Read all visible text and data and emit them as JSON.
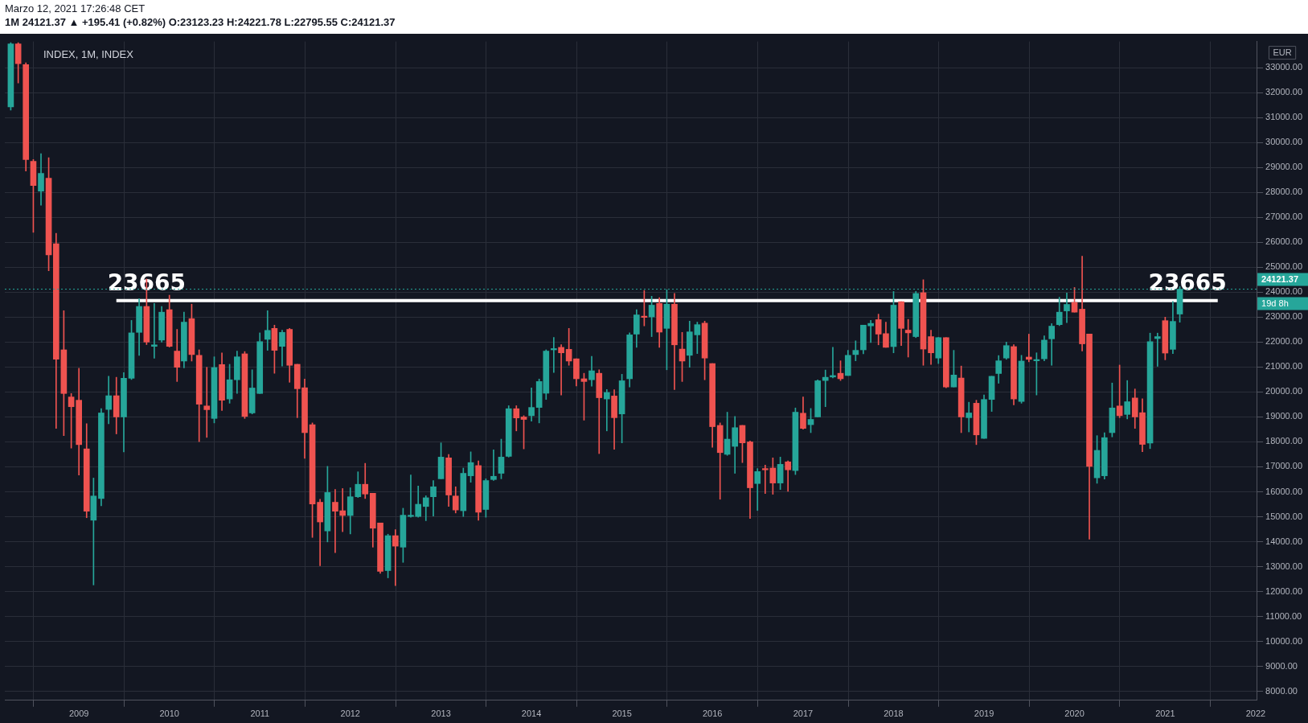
{
  "chart_data": {
    "type": "candlestick",
    "title": "INDEX, 1M, INDEX",
    "subtitle": "1M  24121.37 ▲ +195.41 (+0.82%) O:23123.23 H:24221.78 L:22795.55 C:24121.37",
    "ylabel": "EUR",
    "annotations": [
      "Marzo 12, 2021 17:26:48 CET",
      {
        "text": "23665",
        "x": "2009-10",
        "y": 23665
      },
      {
        "text": "23665",
        "x": "2021-04",
        "y": 23665
      },
      "19d 8h"
    ],
    "x": [
      "2008-04",
      "2008-05",
      "2008-06",
      "2008-07",
      "2008-08",
      "2008-09",
      "2008-10",
      "2008-11",
      "2008-12",
      "2009-01",
      "2009-02",
      "2009-03",
      "2009-04",
      "2009-05",
      "2009-06",
      "2009-07",
      "2009-08",
      "2009-09",
      "2009-10",
      "2009-11",
      "2009-12",
      "2010-01",
      "2010-02",
      "2010-03",
      "2010-04",
      "2010-05",
      "2010-06",
      "2010-07",
      "2010-08",
      "2010-09",
      "2010-10",
      "2010-11",
      "2010-12",
      "2011-01",
      "2011-02",
      "2011-03",
      "2011-04",
      "2011-05",
      "2011-06",
      "2011-07",
      "2011-08",
      "2011-09",
      "2011-10",
      "2011-11",
      "2011-12",
      "2012-01",
      "2012-02",
      "2012-03",
      "2012-04",
      "2012-05",
      "2012-06",
      "2012-07",
      "2012-08",
      "2012-09",
      "2012-10",
      "2012-11",
      "2012-12",
      "2013-01",
      "2013-02",
      "2013-03",
      "2013-04",
      "2013-05",
      "2013-06",
      "2013-07",
      "2013-08",
      "2013-09",
      "2013-10",
      "2013-11",
      "2013-12",
      "2014-01",
      "2014-02",
      "2014-03",
      "2014-04",
      "2014-05",
      "2014-06",
      "2014-07",
      "2014-08",
      "2014-09",
      "2014-10",
      "2014-11",
      "2014-12",
      "2015-01",
      "2015-02",
      "2015-03",
      "2015-04",
      "2015-05",
      "2015-06",
      "2015-07",
      "2015-08",
      "2015-09",
      "2015-10",
      "2015-11",
      "2015-12",
      "2016-01",
      "2016-02",
      "2016-03",
      "2016-04",
      "2016-05",
      "2016-06",
      "2016-07",
      "2016-08",
      "2016-09",
      "2016-10",
      "2016-11",
      "2016-12",
      "2017-01",
      "2017-02",
      "2017-03",
      "2017-04",
      "2017-05",
      "2017-06",
      "2017-07",
      "2017-08",
      "2017-09",
      "2017-10",
      "2017-11",
      "2017-12",
      "2018-01",
      "2018-02",
      "2018-03",
      "2018-04",
      "2018-05",
      "2018-06",
      "2018-07",
      "2018-08",
      "2018-09",
      "2018-10",
      "2018-11",
      "2018-12",
      "2019-01",
      "2019-02",
      "2019-03",
      "2019-04",
      "2019-05",
      "2019-06",
      "2019-07",
      "2019-08",
      "2019-09",
      "2019-10",
      "2019-11",
      "2019-12",
      "2020-01",
      "2020-02",
      "2020-03",
      "2020-04",
      "2020-05",
      "2020-06",
      "2020-07",
      "2020-08",
      "2020-09",
      "2020-10",
      "2020-11",
      "2020-12",
      "2021-01",
      "2021-02",
      "2021-03"
    ],
    "ohlc": [
      [
        31430,
        34000,
        31300,
        33950
      ],
      [
        33950,
        34000,
        32390,
        33160
      ],
      [
        33120,
        33200,
        28860,
        29320
      ],
      [
        29250,
        29320,
        26400,
        28280
      ],
      [
        28050,
        29550,
        27490,
        28760
      ],
      [
        28570,
        29390,
        24860,
        25500
      ],
      [
        25940,
        26360,
        18540,
        21310
      ],
      [
        21690,
        23260,
        18250,
        19940
      ],
      [
        19800,
        19940,
        17750,
        19410
      ],
      [
        19670,
        20950,
        16670,
        17890
      ],
      [
        17720,
        18730,
        14960,
        15220
      ],
      [
        14860,
        16550,
        12265,
        15830
      ],
      [
        15730,
        19330,
        15440,
        19160
      ],
      [
        19300,
        20630,
        18730,
        19850
      ],
      [
        19850,
        20590,
        18320,
        19000
      ],
      [
        19000,
        20780,
        17600,
        20550
      ],
      [
        20550,
        22870,
        20500,
        22370
      ],
      [
        22390,
        23740,
        21470,
        23430
      ],
      [
        23430,
        24530,
        21900,
        22000
      ],
      [
        21830,
        23550,
        21350,
        21890
      ],
      [
        22080,
        23430,
        22000,
        23200
      ],
      [
        23300,
        23880,
        21800,
        21830
      ],
      [
        21640,
        22510,
        20420,
        20990
      ],
      [
        21240,
        23200,
        20970,
        22800
      ],
      [
        22940,
        23520,
        21240,
        21500
      ],
      [
        21470,
        21690,
        18010,
        19510
      ],
      [
        19440,
        20990,
        18180,
        19290
      ],
      [
        18940,
        21410,
        18760,
        20980
      ],
      [
        21100,
        21570,
        19260,
        19670
      ],
      [
        19720,
        21110,
        19550,
        20490
      ],
      [
        20490,
        21640,
        19940,
        21410
      ],
      [
        21530,
        21620,
        18940,
        19020
      ],
      [
        19160,
        20890,
        19120,
        20160
      ],
      [
        19940,
        22370,
        19940,
        22020
      ],
      [
        22110,
        23260,
        21670,
        22470
      ],
      [
        22550,
        22680,
        20750,
        21670
      ],
      [
        21830,
        22480,
        21040,
        22390
      ],
      [
        22510,
        22550,
        20390,
        21070
      ],
      [
        21110,
        21110,
        18970,
        20130
      ],
      [
        20170,
        20520,
        17340,
        18370
      ],
      [
        18690,
        18760,
        14170,
        15510
      ],
      [
        15580,
        15700,
        13040,
        14790
      ],
      [
        14430,
        17020,
        13990,
        15970
      ],
      [
        15580,
        16090,
        13560,
        15220
      ],
      [
        15240,
        16130,
        14400,
        15050
      ],
      [
        15050,
        16160,
        14310,
        15800
      ],
      [
        15800,
        16800,
        15770,
        16300
      ],
      [
        16300,
        17140,
        15730,
        15910
      ],
      [
        15940,
        15940,
        13780,
        14540
      ],
      [
        14750,
        14750,
        12730,
        12810
      ],
      [
        12840,
        14300,
        12550,
        14240
      ],
      [
        14240,
        14480,
        12240,
        13820
      ],
      [
        13780,
        15340,
        13170,
        15060
      ],
      [
        15010,
        16670,
        14980,
        15060
      ],
      [
        15010,
        16230,
        14980,
        15500
      ],
      [
        15410,
        15840,
        14840,
        15760
      ],
      [
        15800,
        16450,
        15030,
        16200
      ],
      [
        16520,
        17960,
        16520,
        17390
      ],
      [
        17360,
        17500,
        15410,
        15870
      ],
      [
        15830,
        16200,
        15150,
        15270
      ],
      [
        15240,
        16950,
        15010,
        16740
      ],
      [
        16640,
        17600,
        16380,
        17170
      ],
      [
        17050,
        17240,
        14860,
        15180
      ],
      [
        15290,
        16520,
        14980,
        16450
      ],
      [
        16490,
        17680,
        16450,
        16620
      ],
      [
        16740,
        18110,
        16520,
        17390
      ],
      [
        17420,
        19450,
        17390,
        19330
      ],
      [
        19330,
        19450,
        18440,
        18960
      ],
      [
        19000,
        19050,
        17720,
        18900
      ],
      [
        19050,
        20160,
        18830,
        19380
      ],
      [
        19380,
        20520,
        18760,
        20420
      ],
      [
        19950,
        21690,
        19700,
        21640
      ],
      [
        21690,
        22190,
        20780,
        21740
      ],
      [
        21790,
        21900,
        19880,
        21570
      ],
      [
        21710,
        22550,
        21070,
        21240
      ],
      [
        21330,
        21330,
        20240,
        20530
      ],
      [
        20530,
        20750,
        18870,
        20420
      ],
      [
        20490,
        21430,
        20230,
        20850
      ],
      [
        20750,
        20890,
        17530,
        19770
      ],
      [
        19720,
        20100,
        18440,
        19980
      ],
      [
        19840,
        20090,
        17700,
        18970
      ],
      [
        19120,
        20710,
        17960,
        20450
      ],
      [
        20530,
        22370,
        20200,
        22290
      ],
      [
        22320,
        23300,
        21790,
        23090
      ],
      [
        23040,
        24070,
        22650,
        22990
      ],
      [
        23010,
        23840,
        22220,
        23480
      ],
      [
        23550,
        23780,
        21790,
        22400
      ],
      [
        22550,
        24100,
        20890,
        23520
      ],
      [
        23520,
        23950,
        20100,
        21890
      ],
      [
        21720,
        22390,
        20420,
        21240
      ],
      [
        21470,
        22840,
        20990,
        22410
      ],
      [
        22290,
        22800,
        21540,
        22700
      ],
      [
        22760,
        22840,
        20490,
        21360
      ],
      [
        21140,
        21140,
        17780,
        18610
      ],
      [
        18660,
        18760,
        15700,
        17570
      ],
      [
        17500,
        19190,
        17460,
        18110
      ],
      [
        17820,
        19020,
        16740,
        18570
      ],
      [
        18660,
        18660,
        17170,
        17960
      ],
      [
        18000,
        18040,
        14930,
        16160
      ],
      [
        16330,
        16930,
        15250,
        16810
      ],
      [
        16930,
        17070,
        15930,
        16880
      ],
      [
        16950,
        17360,
        15900,
        16350
      ],
      [
        16350,
        17390,
        16090,
        17100
      ],
      [
        17200,
        17240,
        16020,
        16880
      ],
      [
        16850,
        19360,
        16690,
        19190
      ],
      [
        19150,
        19800,
        18510,
        18540
      ],
      [
        18690,
        19340,
        18370,
        18900
      ],
      [
        19000,
        20490,
        19000,
        20450
      ],
      [
        20460,
        20880,
        19410,
        20590
      ],
      [
        20600,
        21790,
        20560,
        20660
      ],
      [
        20750,
        21250,
        20460,
        20530
      ],
      [
        20660,
        21670,
        20660,
        21470
      ],
      [
        21500,
        22050,
        21250,
        21670
      ],
      [
        21690,
        22680,
        21530,
        22680
      ],
      [
        22650,
        22870,
        21980,
        22750
      ],
      [
        22900,
        23120,
        21890,
        22320
      ],
      [
        22340,
        22800,
        21790,
        21790
      ],
      [
        21820,
        24030,
        21570,
        23480
      ],
      [
        23620,
        23620,
        21860,
        22550
      ],
      [
        22480,
        22910,
        21400,
        22370
      ],
      [
        22220,
        24030,
        22180,
        23950
      ],
      [
        23980,
        24500,
        21070,
        21720
      ],
      [
        22220,
        22480,
        21100,
        21570
      ],
      [
        21360,
        22190,
        21140,
        22180
      ],
      [
        22180,
        22180,
        20170,
        20200
      ],
      [
        20200,
        21670,
        20200,
        20680
      ],
      [
        20560,
        21040,
        18370,
        19000
      ],
      [
        18970,
        19590,
        18400,
        19160
      ],
      [
        19550,
        19670,
        17890,
        18280
      ],
      [
        18140,
        19880,
        18140,
        19700
      ],
      [
        19700,
        20630,
        19220,
        20630
      ],
      [
        20740,
        21460,
        20350,
        21250
      ],
      [
        21360,
        22000,
        21310,
        21860
      ],
      [
        21820,
        21900,
        19480,
        19720
      ],
      [
        19620,
        21470,
        19550,
        21240
      ],
      [
        21400,
        22320,
        21210,
        21310
      ],
      [
        21250,
        21570,
        19880,
        21300
      ],
      [
        21330,
        22250,
        21250,
        22080
      ],
      [
        22130,
        22740,
        21070,
        22640
      ],
      [
        22700,
        23800,
        22660,
        23200
      ],
      [
        23250,
        23970,
        22780,
        23510
      ],
      [
        23590,
        24190,
        23200,
        23200
      ],
      [
        23320,
        25440,
        21640,
        21930
      ],
      [
        22320,
        22320,
        14100,
        17020
      ],
      [
        16560,
        18250,
        16340,
        17660
      ],
      [
        16640,
        18370,
        16510,
        18170
      ],
      [
        18370,
        20360,
        18200,
        19360
      ],
      [
        19440,
        21080,
        18970,
        19050
      ],
      [
        19100,
        20460,
        18920,
        19610
      ],
      [
        19760,
        20120,
        18540,
        19000
      ],
      [
        19170,
        19730,
        17610,
        17900
      ],
      [
        17950,
        22360,
        17730,
        22020
      ],
      [
        22140,
        22360,
        21030,
        22220
      ],
      [
        22860,
        23000,
        21290,
        21560
      ],
      [
        21710,
        23630,
        21540,
        22830
      ],
      [
        23123.23,
        24221.78,
        22795.55,
        24121.37
      ]
    ],
    "colors": [
      "#26a69a",
      "#ef5350",
      "#ef5350",
      "#ef5350",
      "#26a69a",
      "#ef5350",
      "#ef5350",
      "#ef5350",
      "#ef5350",
      "#ef5350",
      "#ef5350",
      "#26a69a",
      "#26a69a",
      "#26a69a",
      "#ef5350",
      "#26a69a",
      "#26a69a",
      "#26a69a",
      "#ef5350",
      "#26a69a",
      "#26a69a",
      "#ef5350",
      "#ef5350",
      "#26a69a",
      "#ef5350",
      "#ef5350",
      "#ef5350",
      "#26a69a",
      "#ef5350",
      "#26a69a",
      "#26a69a",
      "#ef5350",
      "#26a69a",
      "#26a69a",
      "#26a69a",
      "#ef5350",
      "#26a69a",
      "#ef5350",
      "#ef5350",
      "#ef5350",
      "#ef5350",
      "#ef5350",
      "#26a69a",
      "#ef5350",
      "#ef5350",
      "#26a69a",
      "#26a69a",
      "#ef5350",
      "#ef5350",
      "#ef5350",
      "#26a69a",
      "#ef5350",
      "#26a69a",
      "#26a69a",
      "#26a69a",
      "#26a69a",
      "#26a69a",
      "#26a69a",
      "#ef5350",
      "#ef5350",
      "#26a69a",
      "#26a69a",
      "#ef5350",
      "#26a69a",
      "#26a69a",
      "#26a69a",
      "#26a69a",
      "#ef5350",
      "#ef5350",
      "#26a69a",
      "#26a69a",
      "#26a69a",
      "#26a69a",
      "#ef5350",
      "#ef5350",
      "#ef5350",
      "#ef5350",
      "#26a69a",
      "#ef5350",
      "#26a69a",
      "#ef5350",
      "#26a69a",
      "#26a69a",
      "#26a69a",
      "#ef5350",
      "#26a69a",
      "#ef5350",
      "#26a69a",
      "#ef5350",
      "#ef5350",
      "#26a69a",
      "#26a69a",
      "#ef5350",
      "#ef5350",
      "#ef5350",
      "#26a69a",
      "#26a69a",
      "#ef5350",
      "#ef5350",
      "#26a69a",
      "#ef5350",
      "#ef5350",
      "#26a69a",
      "#ef5350",
      "#26a69a",
      "#ef5350",
      "#26a69a",
      "#26a69a",
      "#26a69a",
      "#26a69a",
      "#ef5350",
      "#26a69a",
      "#26a69a",
      "#26a69a",
      "#26a69a",
      "#ef5350",
      "#ef5350",
      "#26a69a",
      "#ef5350",
      "#ef5350",
      "#26a69a",
      "#ef5350",
      "#ef5350",
      "#26a69a",
      "#ef5350",
      "#26a69a",
      "#ef5350",
      "#26a69a",
      "#ef5350",
      "#26a69a",
      "#26a69a",
      "#26a69a",
      "#26a69a",
      "#ef5350",
      "#26a69a",
      "#ef5350",
      "#26a69a",
      "#26a69a",
      "#26a69a",
      "#26a69a",
      "#26a69a",
      "#ef5350",
      "#ef5350",
      "#ef5350",
      "#26a69a",
      "#26a69a",
      "#26a69a",
      "#ef5350",
      "#26a69a",
      "#ef5350",
      "#ef5350",
      "#26a69a",
      "#26a69a",
      "#ef5350",
      "#26a69a",
      "#26a69a"
    ],
    "series": [
      {
        "type": "line",
        "x": [
          "2009-06",
          "2021-08"
        ],
        "values": [
          23665,
          23665
        ],
        "color": "#ffffff"
      }
    ],
    "ref_lines": [
      {
        "axis": "y",
        "value": 24121.37,
        "label": "24121.37",
        "color": "#26a69a",
        "line_style": "dotted"
      }
    ],
    "xlim": [
      "2008-03-08",
      "2022-01-05"
    ],
    "xticks": [
      "2009",
      "2010",
      "2011",
      "2012",
      "2013",
      "2014",
      "2015",
      "2016",
      "2017",
      "2018",
      "2019",
      "2020",
      "2021",
      "2022"
    ],
    "ylim": [
      7640,
      34050
    ],
    "yticks": [
      {
        "value": 8000,
        "label": "8000.00"
      },
      {
        "value": 9000,
        "label": "9000.00"
      },
      {
        "value": 10000,
        "label": "10000.00"
      },
      {
        "value": 11000,
        "label": "11000.00"
      },
      {
        "value": 12000,
        "label": "12000.00"
      },
      {
        "value": 13000,
        "label": "13000.00"
      },
      {
        "value": 14000,
        "label": "14000.00"
      },
      {
        "value": 15000,
        "label": "15000.00"
      },
      {
        "value": 16000,
        "label": "16000.00"
      },
      {
        "value": 17000,
        "label": "17000.00"
      },
      {
        "value": 18000,
        "label": "18000.00"
      },
      {
        "value": 19000,
        "label": "19000.00"
      },
      {
        "value": 20000,
        "label": "20000.00"
      },
      {
        "value": 21000,
        "label": "21000.00"
      },
      {
        "value": 22000,
        "label": "22000.00"
      },
      {
        "value": 23000,
        "label": "23000.00"
      },
      {
        "value": 24000,
        "label": "24000.00"
      },
      {
        "value": 25000,
        "label": "25000.00"
      },
      {
        "value": 26000,
        "label": "26000.00"
      },
      {
        "value": 27000,
        "label": "27000.00"
      },
      {
        "value": 28000,
        "label": "28000.00"
      },
      {
        "value": 29000,
        "label": "29000.00"
      },
      {
        "value": 30000,
        "label": "30000.00"
      },
      {
        "value": 31000,
        "label": "31000.00"
      },
      {
        "value": 32000,
        "label": "32000.00"
      },
      {
        "value": 33000,
        "label": "33000.00"
      }
    ],
    "grid": true,
    "legend": false
  }
}
